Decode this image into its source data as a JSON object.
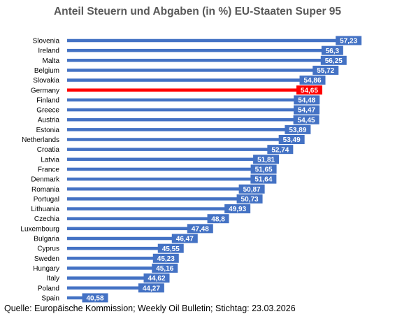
{
  "chart_data": {
    "type": "bar",
    "orientation": "horizontal",
    "title": "Anteil Steuern und Abgaben (in %) EU-Staaten Super 95",
    "categories": [
      "Slovenia",
      "Ireland",
      "Malta",
      "Belgium",
      "Slovakia",
      "Germany",
      "Finland",
      "Greece",
      "Austria",
      "Estonia",
      "Netherlands",
      "Croatia",
      "Latvia",
      "France",
      "Denmark",
      "Romania",
      "Portugal",
      "Lithuania",
      "Czechia",
      "Luxembourg",
      "Bulgaria",
      "Cyprus",
      "Sweden",
      "Hungary",
      "Italy",
      "Poland",
      "Spain"
    ],
    "values": [
      57.23,
      56.3,
      56.25,
      55.72,
      54.86,
      54.65,
      54.48,
      54.47,
      54.45,
      53.89,
      53.49,
      52.74,
      51.81,
      51.65,
      51.64,
      50.87,
      50.73,
      49.93,
      48.8,
      47.48,
      46.47,
      45.55,
      45.23,
      45.16,
      44.62,
      44.27,
      40.58
    ],
    "value_labels": [
      "57,23",
      "56,3",
      "56,25",
      "55,72",
      "54,86",
      "54,65",
      "54,48",
      "54,47",
      "54,45",
      "53,89",
      "53,49",
      "52,74",
      "51,81",
      "51,65",
      "51,64",
      "50,87",
      "50,73",
      "49,93",
      "48,8",
      "47,48",
      "46,47",
      "45,55",
      "45,23",
      "45,16",
      "44,62",
      "44,27",
      "40,58"
    ],
    "highlight_category": "Germany",
    "xlim": [
      39.5,
      57.5
    ],
    "grid": false,
    "colors": {
      "bar": "#4472C4",
      "highlight": "#FF0000"
    }
  },
  "source": "Quelle: Europäische Kommission; Weekly Oil Bulletin; Stichtag: 23.03.2026"
}
